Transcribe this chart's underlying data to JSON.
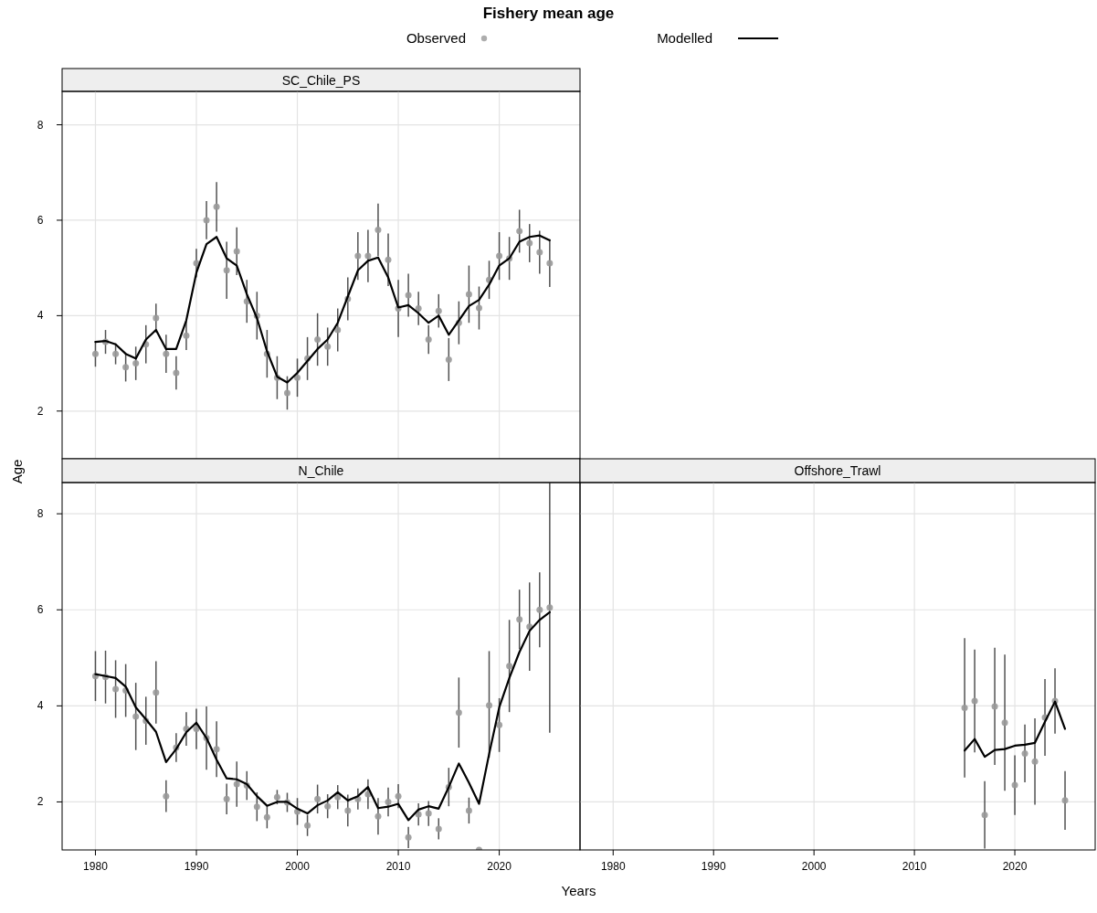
{
  "chart_data": [
    {
      "type": "line",
      "title": "Fishery mean age",
      "subtitle": "SC_Chile_PS",
      "legend": "top",
      "grid": true,
      "tick_labels": "y",
      "xlim": [
        1976.7,
        2028
      ],
      "ylim": [
        1.0,
        8.7
      ],
      "xticks": [
        1980,
        1990,
        2000,
        2010,
        2020
      ],
      "yticks": [
        2,
        4,
        6,
        8
      ],
      "x": [
        1980,
        1981,
        1982,
        1983,
        1984,
        1985,
        1986,
        1987,
        1988,
        1989,
        1990,
        1991,
        1992,
        1993,
        1994,
        1995,
        1996,
        1997,
        1998,
        1999,
        2000,
        2001,
        2002,
        2003,
        2004,
        2005,
        2006,
        2007,
        2008,
        2009,
        2010,
        2011,
        2012,
        2013,
        2014,
        2015,
        2016,
        2017,
        2018,
        2019,
        2020,
        2021,
        2022,
        2023,
        2024,
        2025
      ],
      "series": [
        {
          "name": "Observed",
          "type": "scatter",
          "marker": "circle",
          "color": "#999999",
          "values": [
            3.2,
            3.45,
            3.2,
            2.92,
            3.0,
            3.4,
            3.95,
            3.2,
            2.8,
            3.58,
            5.1,
            6.0,
            6.28,
            4.95,
            5.35,
            4.3,
            4.0,
            3.2,
            2.7,
            2.38,
            2.7,
            3.1,
            3.5,
            3.35,
            3.7,
            4.35,
            5.25,
            5.25,
            5.8,
            5.17,
            4.15,
            4.43,
            4.15,
            3.5,
            4.1,
            3.08,
            3.85,
            4.45,
            4.16,
            4.75,
            5.25,
            5.2,
            5.77,
            5.52,
            5.33,
            5.1
          ],
          "errors": [
            0.27,
            0.25,
            0.22,
            0.3,
            0.35,
            0.4,
            0.3,
            0.4,
            0.35,
            0.3,
            0.3,
            0.4,
            0.52,
            0.6,
            0.5,
            0.45,
            0.5,
            0.5,
            0.45,
            0.35,
            0.4,
            0.45,
            0.55,
            0.4,
            0.45,
            0.45,
            0.5,
            0.55,
            0.55,
            0.55,
            0.6,
            0.45,
            0.35,
            0.3,
            0.35,
            0.45,
            0.45,
            0.6,
            0.45,
            0.4,
            0.5,
            0.45,
            0.45,
            0.4,
            0.45,
            0.5
          ]
        },
        {
          "name": "Modelled",
          "color": "#000000",
          "line_style": "solid",
          "values": [
            3.45,
            3.47,
            3.4,
            3.2,
            3.1,
            3.5,
            3.7,
            3.3,
            3.3,
            3.9,
            4.9,
            5.5,
            5.65,
            5.2,
            5.05,
            4.45,
            3.95,
            3.25,
            2.72,
            2.6,
            2.8,
            3.05,
            3.3,
            3.5,
            3.85,
            4.4,
            4.95,
            5.15,
            5.22,
            4.8,
            4.17,
            4.22,
            4.05,
            3.85,
            4.0,
            3.6,
            3.9,
            4.2,
            4.33,
            4.65,
            5.05,
            5.2,
            5.55,
            5.65,
            5.68,
            5.58
          ]
        }
      ]
    },
    {
      "type": "line",
      "subtitle": "N_Chile",
      "xlabel": "Years",
      "ylabel": "Age",
      "grid": true,
      "xlim": [
        1976.7,
        2028
      ],
      "ylim": [
        1.0,
        8.65
      ],
      "xticks": [
        1980,
        1990,
        2000,
        2010,
        2020
      ],
      "yticks": [
        2,
        4,
        6,
        8
      ],
      "x": [
        1980,
        1981,
        1982,
        1983,
        1984,
        1985,
        1986,
        1987,
        1988,
        1989,
        1990,
        1991,
        1992,
        1993,
        1994,
        1995,
        1996,
        1997,
        1998,
        1999,
        2000,
        2001,
        2002,
        2003,
        2004,
        2005,
        2006,
        2007,
        2008,
        2009,
        2010,
        2011,
        2012,
        2013,
        2014,
        2015,
        2016,
        2017,
        2018,
        2019,
        2020,
        2021,
        2022,
        2023,
        2024,
        2025
      ],
      "series": [
        {
          "type": "scatter",
          "marker": "circle",
          "color": "#999999",
          "values": [
            4.62,
            4.6,
            4.35,
            4.32,
            3.78,
            3.69,
            4.28,
            2.12,
            3.13,
            3.52,
            3.52,
            3.33,
            3.1,
            2.06,
            2.37,
            2.34,
            1.9,
            1.68,
            2.1,
            1.99,
            1.8,
            1.51,
            2.06,
            1.91,
            2.1,
            1.82,
            2.06,
            2.16,
            1.7,
            2.0,
            2.12,
            1.26,
            1.74,
            1.76,
            1.44,
            2.31,
            3.86,
            1.82,
            1.0,
            4.01,
            3.6,
            4.83,
            5.8,
            5.65,
            6.0,
            6.05
          ],
          "errors": [
            0.52,
            0.55,
            0.6,
            0.55,
            0.7,
            0.5,
            0.65,
            0.33,
            0.3,
            0.35,
            0.42,
            0.66,
            0.58,
            0.32,
            0.47,
            0.3,
            0.3,
            0.23,
            0.15,
            0.2,
            0.28,
            0.22,
            0.3,
            0.25,
            0.25,
            0.33,
            0.22,
            0.31,
            0.38,
            0.3,
            0.25,
            0.22,
            0.23,
            0.26,
            0.22,
            0.4,
            0.73,
            0.27,
            null,
            [
              2.92,
              5.14
            ],
            0.56,
            0.96,
            0.62,
            0.92,
            0.78,
            [
              3.44,
              8.65
            ]
          ]
        },
        {
          "color": "#000000",
          "line_style": "solid",
          "values": [
            4.66,
            4.62,
            4.58,
            4.4,
            3.97,
            3.72,
            3.46,
            2.83,
            3.1,
            3.45,
            3.65,
            3.33,
            2.88,
            2.49,
            2.47,
            2.37,
            2.12,
            1.92,
            2.0,
            2.0,
            1.86,
            1.76,
            1.93,
            2.03,
            2.2,
            2.03,
            2.12,
            2.31,
            1.87,
            1.9,
            1.96,
            1.62,
            1.84,
            1.91,
            1.86,
            2.31,
            2.8,
            2.4,
            1.96,
            3.0,
            3.97,
            4.58,
            5.12,
            5.56,
            5.79,
            5.95
          ]
        }
      ]
    },
    {
      "type": "line",
      "subtitle": "Offshore_Trawl",
      "grid": true,
      "tick_labels": "x",
      "xlim": [
        1976.7,
        2028
      ],
      "ylim": [
        1.0,
        8.65
      ],
      "xticks": [
        1980,
        1990,
        2000,
        2010,
        2020
      ],
      "yticks": [
        2,
        4,
        6,
        8
      ],
      "x": [
        2015,
        2016,
        2017,
        2018,
        2019,
        2020,
        2021,
        2022,
        2023,
        2024,
        2025
      ],
      "series": [
        {
          "type": "scatter",
          "marker": "circle",
          "color": "#999999",
          "values": [
            3.96,
            4.1,
            1.73,
            3.99,
            3.65,
            2.35,
            3.01,
            2.84,
            3.76,
            4.1,
            2.03
          ],
          "errors": [
            1.45,
            1.07,
            0.7,
            1.22,
            1.42,
            0.62,
            0.6,
            0.9,
            0.8,
            0.68,
            0.61
          ]
        },
        {
          "color": "#000000",
          "line_style": "solid",
          "values": [
            3.07,
            3.31,
            2.94,
            3.08,
            3.1,
            3.17,
            3.19,
            3.23,
            3.67,
            4.09,
            3.52
          ]
        }
      ]
    }
  ]
}
